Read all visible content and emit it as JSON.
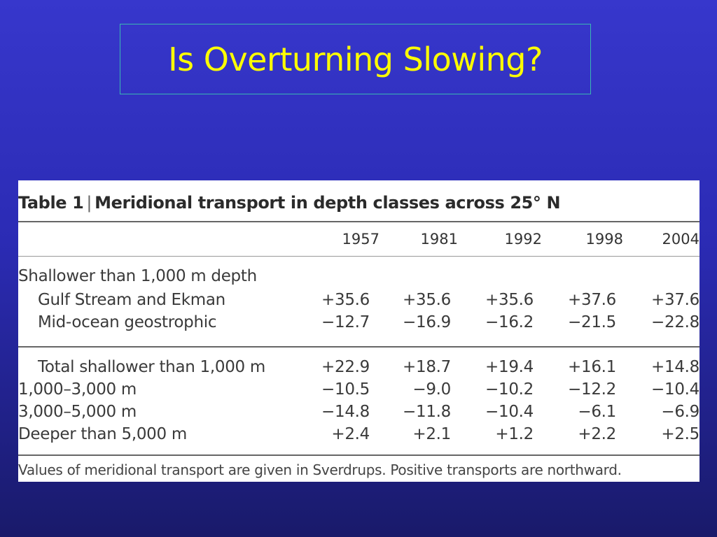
{
  "slide": {
    "title": "Is Overturning Slowing?"
  },
  "table": {
    "label": "Table 1",
    "separator": "|",
    "caption": "Meridional transport in depth classes across 25° N",
    "years": [
      "1957",
      "1981",
      "1992",
      "1998",
      "2004"
    ],
    "section_heading": "Shallower than 1,000 m depth",
    "rows": [
      {
        "label": "Gulf Stream and Ekman",
        "values": [
          "+35.6",
          "+35.6",
          "+35.6",
          "+37.6",
          "+37.6"
        ]
      },
      {
        "label": "Mid-ocean geostrophic",
        "values": [
          "−12.7",
          "−16.9",
          "−16.2",
          "−21.5",
          "−22.8"
        ]
      },
      {
        "label": "Total shallower than 1,000 m",
        "values": [
          "+22.9",
          "+18.7",
          "+19.4",
          "+16.1",
          "+14.8"
        ]
      },
      {
        "label": "1,000–3,000 m",
        "values": [
          "−10.5",
          "−9.0",
          "−10.2",
          "−12.2",
          "−10.4"
        ]
      },
      {
        "label": "3,000–5,000 m",
        "values": [
          "−14.8",
          "−11.8",
          "−10.4",
          "−6.1",
          "−6.9"
        ]
      },
      {
        "label": "Deeper than 5,000 m",
        "values": [
          "+2.4",
          "+2.1",
          "+1.2",
          "+2.2",
          "+2.5"
        ]
      }
    ],
    "footnote": "Values of meridional transport are given in Sverdrups. Positive transports are northward."
  }
}
